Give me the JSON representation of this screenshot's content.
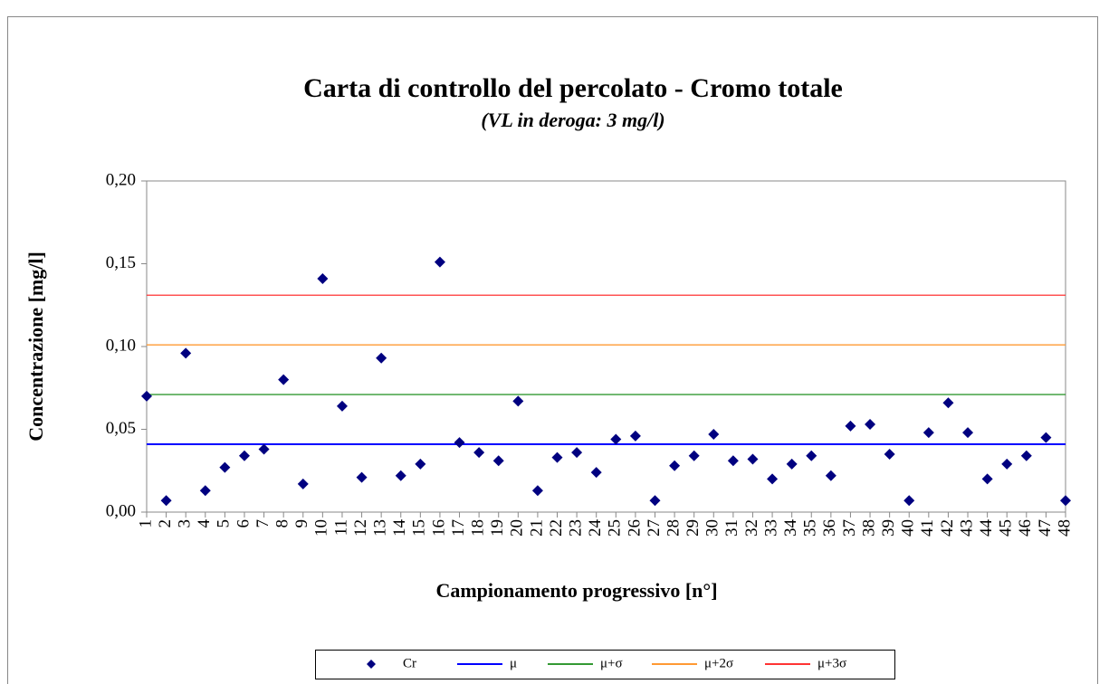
{
  "chart_data": {
    "type": "scatter",
    "title": "Carta di controllo del percolato - Cromo totale",
    "subtitle": "(VL in deroga: 3 mg/l)",
    "y_label": "Concentrazione  [mg/l]",
    "x_label": "Campionamento  progressivo [n°]",
    "categories": [
      "1",
      "2",
      "3",
      "4",
      "5",
      "6",
      "7",
      "8",
      "9",
      "10",
      "11",
      "12",
      "13",
      "14",
      "15",
      "16",
      "17",
      "18",
      "19",
      "20",
      "21",
      "22",
      "23",
      "24",
      "25",
      "26",
      "27",
      "28",
      "29",
      "30",
      "31",
      "32",
      "33",
      "34",
      "35",
      "36",
      "37",
      "38",
      "39",
      "40",
      "41",
      "42",
      "43",
      "44",
      "45",
      "46",
      "47",
      "48"
    ],
    "series": [
      {
        "name": "Cr",
        "color": "#000080",
        "values": [
          0.07,
          0.007,
          0.096,
          0.013,
          0.027,
          0.034,
          0.038,
          0.08,
          0.017,
          0.141,
          0.064,
          0.021,
          0.093,
          0.022,
          0.029,
          0.151,
          0.042,
          0.036,
          0.031,
          0.067,
          0.013,
          0.033,
          0.036,
          0.024,
          0.044,
          0.046,
          0.007,
          0.028,
          0.034,
          0.047,
          0.031,
          0.032,
          0.02,
          0.029,
          0.034,
          0.022,
          0.052,
          0.053,
          0.035,
          0.007,
          0.048,
          0.066,
          0.048,
          0.02,
          0.029,
          0.034,
          0.045,
          0.007
        ]
      }
    ],
    "reference_lines": [
      {
        "name": "μ",
        "color": "#0000ff",
        "value": 0.041
      },
      {
        "name": "μ+σ",
        "color": "#339933",
        "value": 0.071
      },
      {
        "name": "μ+2σ",
        "color": "#ff9933",
        "value": 0.101
      },
      {
        "name": "μ+3σ",
        "color": "#ff3333",
        "value": 0.131
      }
    ],
    "ylim": [
      0,
      0.2
    ],
    "yticks": [
      {
        "value": 0,
        "label": "0,00"
      },
      {
        "value": 0.05,
        "label": "0,05"
      },
      {
        "value": 0.1,
        "label": "0,10"
      },
      {
        "value": 0.15,
        "label": "0,15"
      },
      {
        "value": 0.2,
        "label": "0,20"
      }
    ],
    "legend": "bottom"
  }
}
